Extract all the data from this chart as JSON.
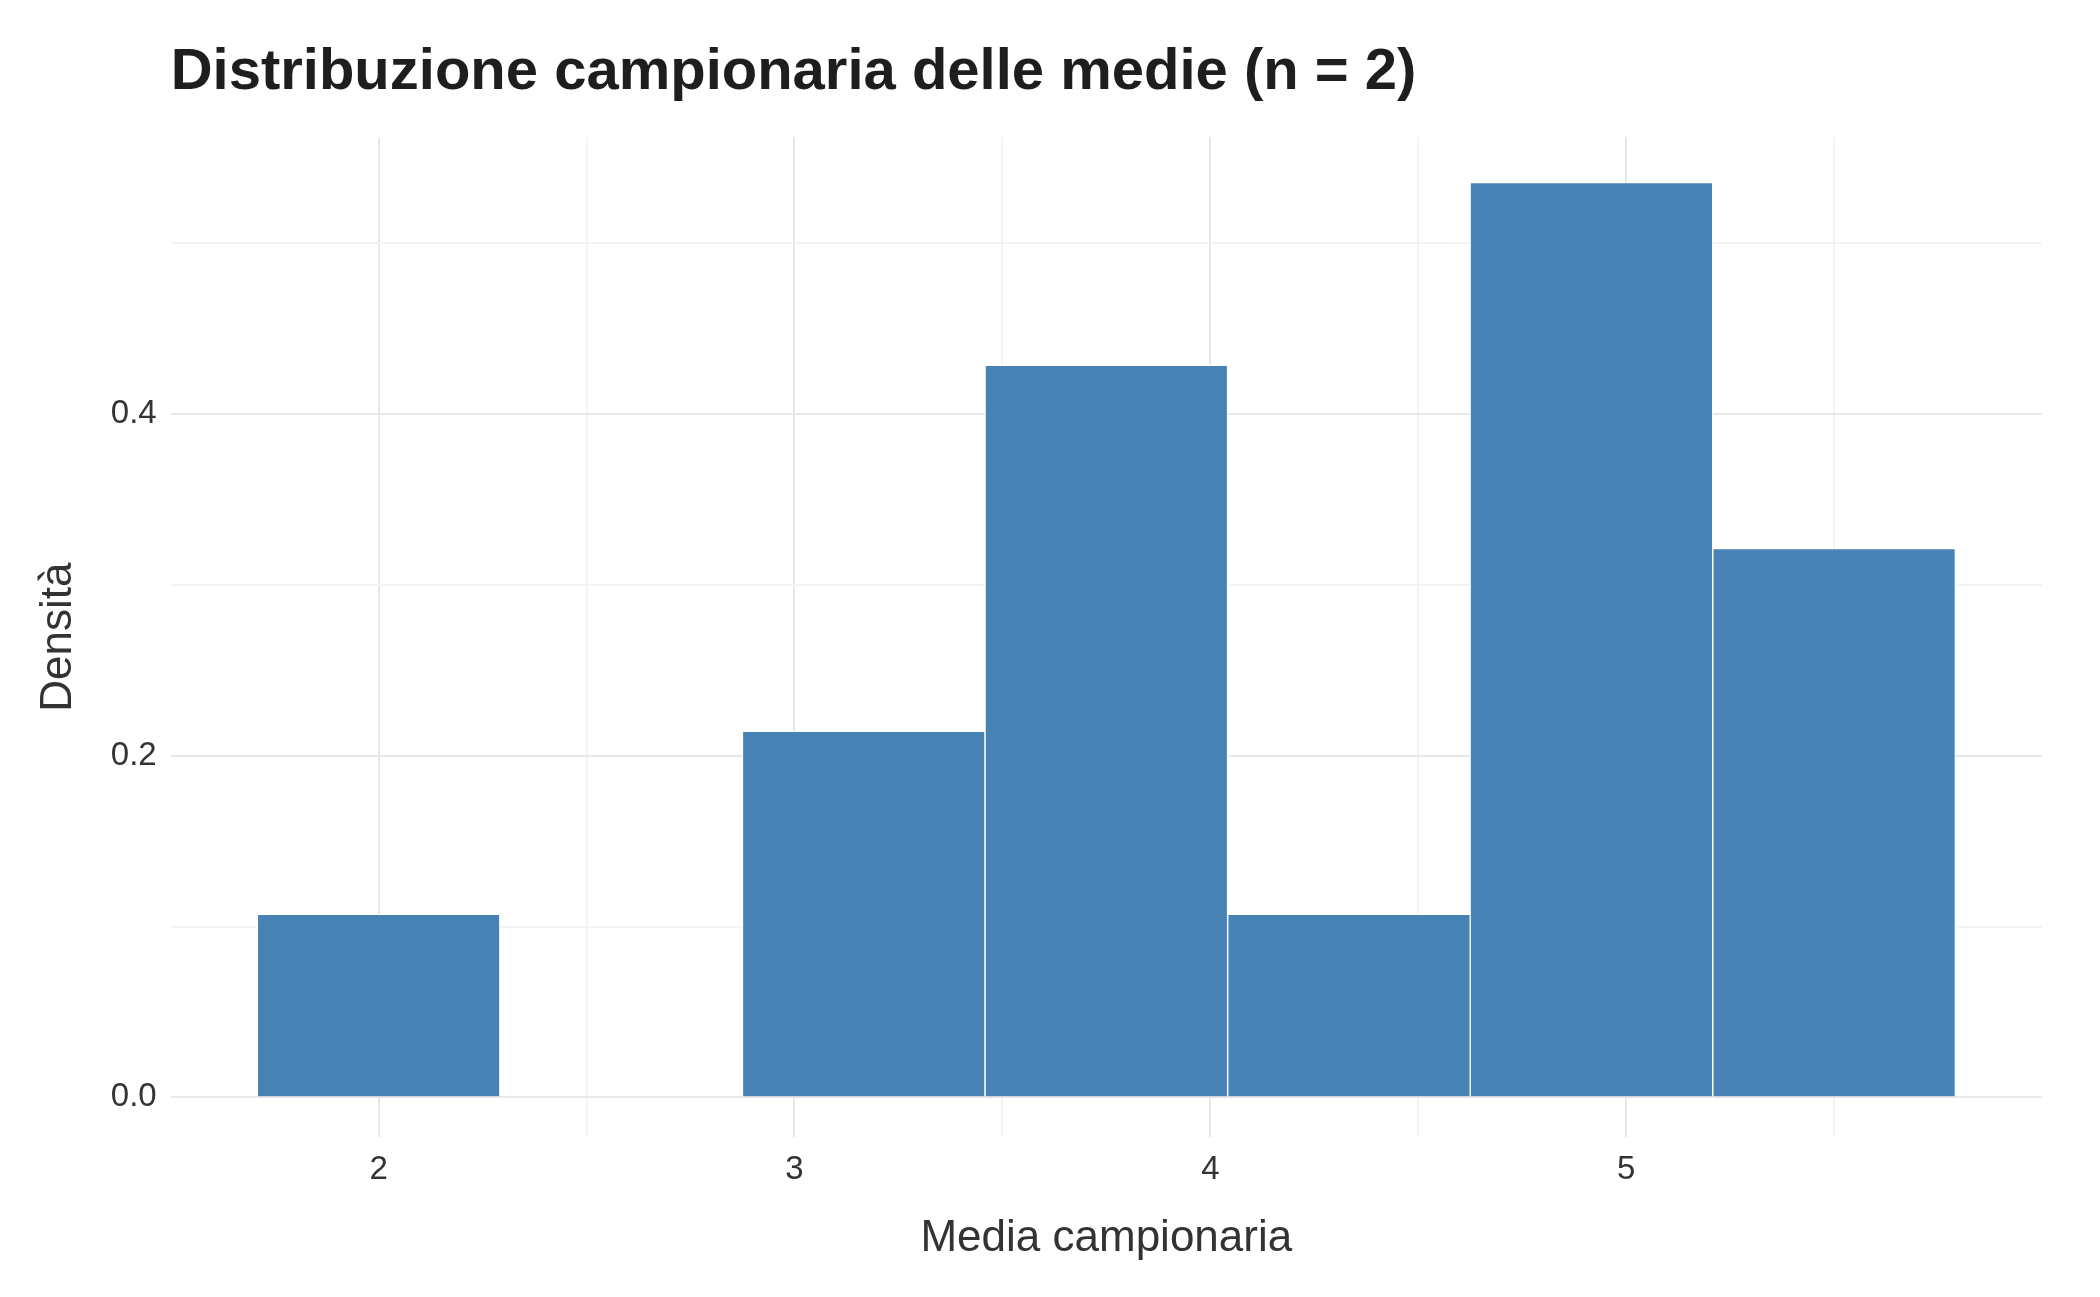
{
  "chart_data": {
    "type": "histogram",
    "title": "Distribuzione campionaria delle medie (n = 2)",
    "xlabel": "Media campionaria",
    "ylabel": "Densità",
    "bins": [
      1.708,
      2.292,
      2.875,
      3.458,
      4.042,
      4.625,
      5.208,
      5.792
    ],
    "values": [
      0.1071,
      0,
      0.2143,
      0.4286,
      0.1071,
      0.5357,
      0.3214
    ],
    "color": "#4682b4",
    "xlim": [
      1.5,
      6
    ],
    "xticks": [
      {
        "value": 2.5,
        "label": null
      },
      {
        "value": 3.5,
        "label": null
      },
      {
        "value": 4.5,
        "label": null
      },
      {
        "value": 5.5,
        "label": null
      },
      2,
      3,
      4,
      5
    ],
    "ylim": [
      -0.023,
      0.562
    ],
    "yticks": [
      {
        "value": 0.1,
        "label": null
      },
      {
        "value": 0.3,
        "label": null
      },
      {
        "value": 0.5,
        "label": null
      },
      {
        "value": 0,
        "label": "0.0"
      },
      {
        "value": 0.2,
        "label": "0.2"
      },
      {
        "value": 0.4,
        "label": "0.4"
      }
    ],
    "grid": true
  }
}
